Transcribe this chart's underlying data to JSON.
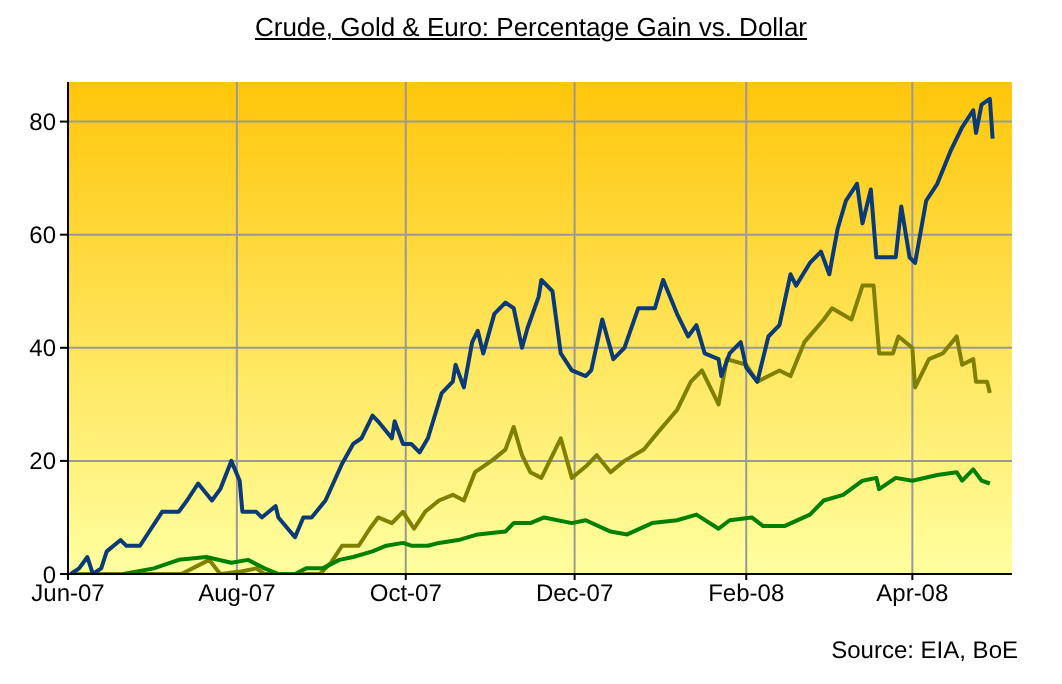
{
  "chart_data": {
    "type": "line",
    "title": "Crude, Gold & Euro: Percentage Gain vs. Dollar",
    "annotations": [
      "Source: EIA, BoE"
    ],
    "xlim": [
      "2007-06-01",
      "2008-05-07"
    ],
    "xticks": [
      {
        "value": "2007-06-01",
        "label": "Jun-07"
      },
      {
        "value": "2007-08-01",
        "label": "Aug-07"
      },
      {
        "value": "2007-10-01",
        "label": "Oct-07"
      },
      {
        "value": "2007-12-01",
        "label": "Dec-07"
      },
      {
        "value": "2008-02-01",
        "label": "Feb-08"
      },
      {
        "value": "2008-04-01",
        "label": "Apr-08"
      }
    ],
    "ylim": [
      0,
      87
    ],
    "yticks": [
      0,
      20,
      40,
      60,
      80
    ],
    "grid": true,
    "marker": "none",
    "line_style": "solid",
    "series": [
      {
        "color": "#808000",
        "x": [
          "2007-06-02",
          "2007-07-12",
          "2007-07-22",
          "2007-07-26",
          "2007-08-03",
          "2007-08-08",
          "2007-08-11",
          "2007-08-31",
          "2007-09-04",
          "2007-09-08",
          "2007-09-14",
          "2007-09-18",
          "2007-09-21",
          "2007-09-26",
          "2007-09-30",
          "2007-10-04",
          "2007-10-08",
          "2007-10-13",
          "2007-10-18",
          "2007-10-22",
          "2007-10-26",
          "2007-11-01",
          "2007-11-06",
          "2007-11-09",
          "2007-11-12",
          "2007-11-15",
          "2007-11-19",
          "2007-11-26",
          "2007-11-30",
          "2007-12-05",
          "2007-12-09",
          "2007-12-14",
          "2007-12-19",
          "2007-12-26",
          "2007-12-31",
          "2008-01-07",
          "2008-01-12",
          "2008-01-16",
          "2008-01-22",
          "2008-01-25",
          "2008-02-01",
          "2008-02-05",
          "2008-02-13",
          "2008-02-17",
          "2008-02-22",
          "2008-02-29",
          "2008-03-03",
          "2008-03-10",
          "2008-03-14",
          "2008-03-18",
          "2008-03-20",
          "2008-03-25",
          "2008-03-27",
          "2008-04-01",
          "2008-04-02",
          "2008-04-07",
          "2008-04-12",
          "2008-04-17",
          "2008-04-19",
          "2008-04-23",
          "2008-04-24",
          "2008-04-28",
          "2008-04-29"
        ],
        "values": [
          0,
          0,
          2.5,
          0,
          0.5,
          1,
          0,
          0,
          2,
          5,
          5,
          8,
          10,
          9,
          11,
          8,
          11,
          13,
          14,
          13,
          18,
          20,
          22,
          26,
          21,
          18,
          17,
          24,
          17,
          19,
          21,
          18,
          20,
          22,
          25,
          29,
          34,
          36,
          30,
          38,
          37,
          34,
          36,
          35,
          41,
          45,
          47,
          45,
          51,
          51,
          39,
          39,
          42,
          40,
          33,
          38,
          39,
          42,
          37,
          38,
          34,
          34,
          32
        ]
      },
      {
        "color": "#008000",
        "x": [
          "2007-06-21",
          "2007-07-02",
          "2007-07-11",
          "2007-07-21",
          "2007-07-30",
          "2007-08-05",
          "2007-08-11",
          "2007-08-16",
          "2007-08-22",
          "2007-08-26",
          "2007-09-01",
          "2007-09-07",
          "2007-09-12",
          "2007-09-19",
          "2007-09-24",
          "2007-09-30",
          "2007-10-03",
          "2007-10-09",
          "2007-10-13",
          "2007-10-20",
          "2007-10-27",
          "2007-11-06",
          "2007-11-09",
          "2007-11-15",
          "2007-11-20",
          "2007-11-30",
          "2007-12-05",
          "2007-12-14",
          "2007-12-20",
          "2007-12-29",
          "2008-01-07",
          "2008-01-14",
          "2008-01-22",
          "2008-01-26",
          "2008-02-03",
          "2008-02-07",
          "2008-02-15",
          "2008-02-24",
          "2008-02-29",
          "2008-03-07",
          "2008-03-14",
          "2008-03-19",
          "2008-03-20",
          "2008-03-26",
          "2008-04-01",
          "2008-04-10",
          "2008-04-17",
          "2008-04-19",
          "2008-04-23",
          "2008-04-26",
          "2008-04-29"
        ],
        "values": [
          0,
          1,
          2.5,
          3,
          2,
          2.5,
          1,
          0,
          0,
          1,
          1,
          2.5,
          3,
          4,
          5,
          5.5,
          5,
          5,
          5.5,
          6,
          7,
          7.5,
          9,
          9,
          10,
          9,
          9.5,
          7.5,
          7,
          9,
          9.5,
          10.5,
          8,
          9.5,
          10,
          8.5,
          8.5,
          10.5,
          13,
          14,
          16.5,
          17,
          15,
          17,
          16.5,
          17.5,
          18,
          16.5,
          18.5,
          16.5,
          16
        ]
      },
      {
        "color": "#0a3a78",
        "x": [
          "2007-06-02",
          "2007-06-05",
          "2007-06-08",
          "2007-06-10",
          "2007-06-13",
          "2007-06-15",
          "2007-06-20",
          "2007-06-22",
          "2007-06-27",
          "2007-07-01",
          "2007-07-05",
          "2007-07-11",
          "2007-07-14",
          "2007-07-18",
          "2007-07-23",
          "2007-07-26",
          "2007-07-30",
          "2007-08-02",
          "2007-08-03",
          "2007-08-08",
          "2007-08-10",
          "2007-08-15",
          "2007-08-16",
          "2007-08-22",
          "2007-08-25",
          "2007-08-28",
          "2007-09-02",
          "2007-09-08",
          "2007-09-12",
          "2007-09-15",
          "2007-09-19",
          "2007-09-21",
          "2007-09-26",
          "2007-09-27",
          "2007-09-30",
          "2007-10-03",
          "2007-10-06",
          "2007-10-09",
          "2007-10-14",
          "2007-10-18",
          "2007-10-19",
          "2007-10-22",
          "2007-10-25",
          "2007-10-27",
          "2007-10-29",
          "2007-11-02",
          "2007-11-06",
          "2007-11-09",
          "2007-11-12",
          "2007-11-14",
          "2007-11-18",
          "2007-11-19",
          "2007-11-23",
          "2007-11-26",
          "2007-11-30",
          "2007-12-05",
          "2007-12-07",
          "2007-12-11",
          "2007-12-15",
          "2007-12-19",
          "2007-12-24",
          "2007-12-30",
          "2008-01-02",
          "2008-01-07",
          "2008-01-11",
          "2008-01-14",
          "2008-01-17",
          "2008-01-22",
          "2008-01-23",
          "2008-01-26",
          "2008-01-30",
          "2008-02-01",
          "2008-02-05",
          "2008-02-09",
          "2008-02-13",
          "2008-02-17",
          "2008-02-19",
          "2008-02-24",
          "2008-02-28",
          "2008-03-02",
          "2008-03-05",
          "2008-03-08",
          "2008-03-12",
          "2008-03-14",
          "2008-03-17",
          "2008-03-19",
          "2008-03-26",
          "2008-03-28",
          "2008-03-31",
          "2008-04-02",
          "2008-04-06",
          "2008-04-10",
          "2008-04-15",
          "2008-04-19",
          "2008-04-23",
          "2008-04-24",
          "2008-04-26",
          "2008-04-29",
          "2008-04-30"
        ],
        "values": [
          0,
          1,
          3,
          0,
          1,
          4,
          6,
          5,
          5,
          8,
          11,
          11,
          13,
          16,
          13,
          15,
          20,
          16.5,
          11,
          11,
          10,
          12,
          10,
          6.5,
          10,
          10,
          13,
          19.5,
          23,
          24,
          28,
          27,
          24,
          27,
          23,
          23,
          21.5,
          24,
          32,
          34,
          37,
          33,
          41,
          43,
          39,
          46,
          48,
          47,
          40,
          43.5,
          49,
          52,
          50,
          39,
          36,
          35,
          36,
          45,
          38,
          40,
          47,
          47,
          52,
          46,
          42,
          44,
          39,
          38,
          35,
          39,
          41,
          36.5,
          34,
          42,
          44,
          53,
          51,
          55,
          57,
          53,
          61,
          66,
          69,
          62,
          68,
          56,
          56,
          65,
          56,
          55,
          66,
          69,
          75,
          79,
          82,
          78,
          83,
          84,
          77
        ]
      }
    ]
  }
}
